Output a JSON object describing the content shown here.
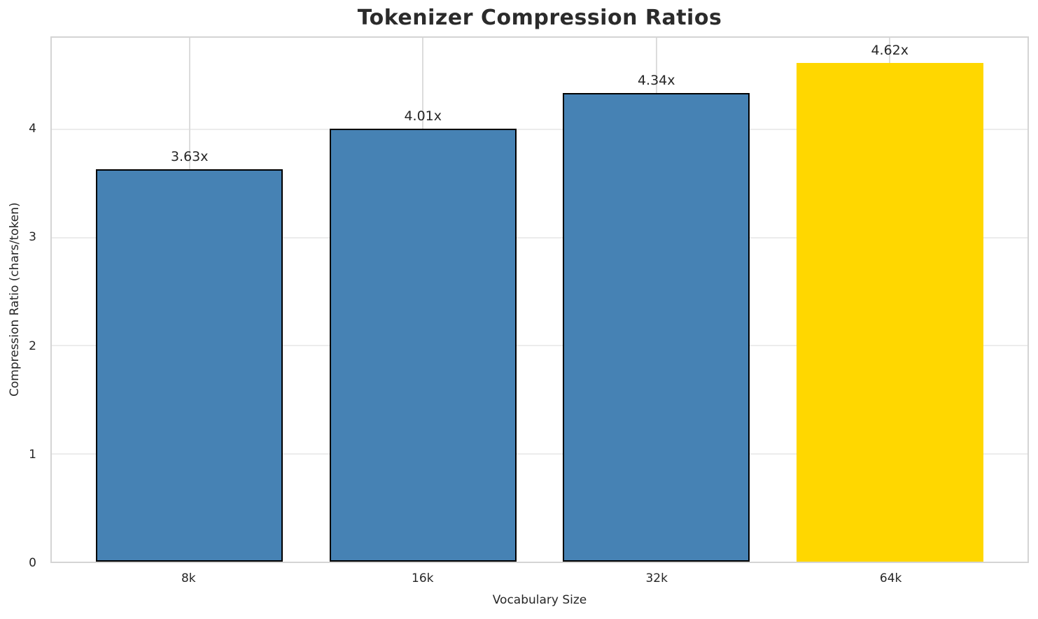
{
  "chart_data": {
    "type": "bar",
    "title": "Tokenizer Compression Ratios",
    "xlabel": "Vocabulary Size",
    "ylabel": "Compression Ratio (chars/token)",
    "categories": [
      "8k",
      "16k",
      "32k",
      "64k"
    ],
    "values": [
      3.63,
      4.01,
      4.34,
      4.62
    ],
    "value_labels": [
      "3.63x",
      "4.01x",
      "4.34x",
      "4.62x"
    ],
    "bar_colors": [
      "#4682b4",
      "#4682b4",
      "#4682b4",
      "#ffd700"
    ],
    "bar_edge_colors": [
      "#000000",
      "#000000",
      "#000000",
      "none"
    ],
    "yticks": [
      0,
      1,
      2,
      3,
      4
    ],
    "ylim": [
      0,
      4.85
    ],
    "grid": "on",
    "legend": "none",
    "highlighted_category": "64k"
  },
  "colors": {
    "bar_default": "#4682b4",
    "bar_highlight": "#ffd700",
    "bar_edge": "#000000",
    "spine": "#d4d4d4",
    "hgrid": "#ececec",
    "vgrid": "#dcdcdc",
    "text": "#262626",
    "background": "#ffffff"
  }
}
